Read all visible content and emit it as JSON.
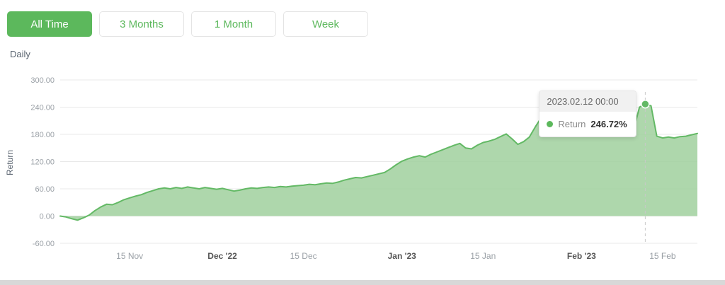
{
  "toolbar": {
    "buttons": [
      {
        "label": "All Time",
        "active": true
      },
      {
        "label": "3 Months",
        "active": false
      },
      {
        "label": "1 Month",
        "active": false
      },
      {
        "label": "Week",
        "active": false
      }
    ]
  },
  "subtitle": "Daily",
  "colors": {
    "accent": "#5cb85c",
    "area": "#a0d09e",
    "line": "#63b965",
    "grid": "#e8e8e8",
    "tick_text": "#9aa0a6",
    "bold_tick_text": "#555555",
    "axis_title": "#5a6470",
    "dashed_line": "#c9c9c9"
  },
  "chart_data": {
    "type": "area",
    "title": "",
    "ylabel": "Return",
    "interval": "Daily",
    "ylim": [
      -60,
      300
    ],
    "grid": true,
    "yticks": [
      {
        "value": 300,
        "label": "300.00"
      },
      {
        "value": 240,
        "label": "240.00"
      },
      {
        "value": 180,
        "label": "180.00"
      },
      {
        "value": 120,
        "label": "120.00"
      },
      {
        "value": 60,
        "label": "60.00"
      },
      {
        "value": 0,
        "label": "0.00"
      },
      {
        "value": -60,
        "label": "-60.00"
      }
    ],
    "xticks": [
      {
        "index": 12,
        "label": "15 Nov",
        "bold": false
      },
      {
        "index": 28,
        "label": "Dec '22",
        "bold": true
      },
      {
        "index": 42,
        "label": "15 Dec",
        "bold": false
      },
      {
        "index": 59,
        "label": "Jan '23",
        "bold": true
      },
      {
        "index": 73,
        "label": "15 Jan",
        "bold": false
      },
      {
        "index": 90,
        "label": "Feb '23",
        "bold": true
      },
      {
        "index": 104,
        "label": "15 Feb",
        "bold": false
      }
    ],
    "series": [
      {
        "name": "Return",
        "values": [
          0,
          -2,
          -6,
          -9,
          -4,
          2,
          12,
          20,
          26,
          25,
          30,
          36,
          40,
          44,
          47,
          52,
          56,
          60,
          62,
          60,
          63,
          61,
          64,
          62,
          60,
          63,
          61,
          59,
          61,
          58,
          55,
          57,
          60,
          62,
          61,
          63,
          64,
          63,
          65,
          64,
          66,
          67,
          68,
          70,
          69,
          71,
          73,
          72,
          75,
          79,
          82,
          85,
          84,
          87,
          90,
          93,
          96,
          104,
          113,
          121,
          126,
          130,
          133,
          130,
          136,
          141,
          146,
          151,
          156,
          160,
          150,
          148,
          156,
          162,
          165,
          169,
          175,
          181,
          170,
          158,
          164,
          174,
          196,
          216,
          224,
          217,
          205,
          195,
          188,
          184,
          182,
          180,
          183,
          181,
          184,
          182,
          185,
          183,
          186,
          190,
          240,
          246.72,
          243,
          176,
          172,
          174,
          172,
          175,
          176,
          179,
          182
        ]
      }
    ],
    "tooltip": {
      "title": "2023.02.12 00:00",
      "series_label": "Return",
      "value": "246.72%",
      "index": 101
    }
  }
}
